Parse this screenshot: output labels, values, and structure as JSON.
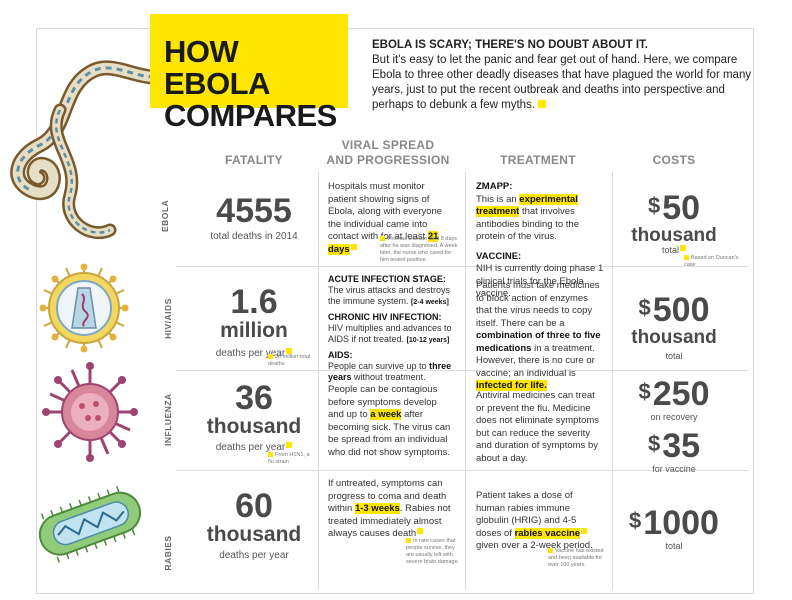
{
  "title_line1": "HOW EBOLA",
  "title_line2": "COMPARES",
  "intro": {
    "lead": "EBOLA IS SCARY; THERE'S NO DOUBT ABOUT IT.",
    "body": "But it's easy to let the panic and fear get out of hand. Here, we compare Ebola to three other deadly diseases that have plagued the world for many years, just to put the recent outbreak and deaths into perspective and perhaps to debunk a few myths."
  },
  "columns": {
    "fatality": "FATALITY",
    "viral_line1": "VIRAL SPREAD",
    "viral_line2": "AND PROGRESSION",
    "treatment": "TREATMENT",
    "costs": "COSTS"
  },
  "colors": {
    "highlight": "#ffe600",
    "number": "#4a4a4a",
    "header": "#888888"
  },
  "rows": {
    "ebola": {
      "label": "EBOLA",
      "fatality_num": "4555",
      "fatality_sub": "total deaths in 2014",
      "viral_text": "Hospitals must monitor patient showing signs of Ebola, along with everyone the individual came into contact with for at least",
      "viral_hl": "21 days",
      "viral_fn": "Thomas Duncan died 8 days after he was diagnosed. A week later, the nurse who cared for him tested positive.",
      "treat_h1": "ZMAPP:",
      "treat_t1a": "This is an",
      "treat_hl1": "experimental treatment",
      "treat_t1b": "that involves antibodies binding to the protein of the virus.",
      "treat_h2": "VACCINE:",
      "treat_t2": "NIH is currently doing phase 1 clinical trials for the Ebola vaccine.",
      "cost_num": "50",
      "cost_unit": "thousand",
      "cost_note": "total",
      "cost_fn": "Based on Duncan's case"
    },
    "hiv": {
      "label": "HIV/AIDS",
      "fatality_num": "1.6",
      "fatality_word": "million",
      "fatality_sub": "deaths per year",
      "fatality_fn": "36 million total deaths",
      "v_h1": "ACUTE INFECTION STAGE:",
      "v_t1": "The virus attacks and destroys the immune system.",
      "v_t1b": "[2-4 weeks]",
      "v_h2": "CHRONIC HIV INFECTION:",
      "v_t2": "HIV multiplies and advances to AIDS if not treated.",
      "v_t2b": "[10-12 years]",
      "v_h3": "AIDS:",
      "v_t3": "People can survive up to",
      "v_t3b": "three years",
      "v_t3c": "without treatment.",
      "treat_t1": "Patients must take medicines to block action of enzymes that the virus needs to copy itself. There can be a",
      "treat_b1": "combination of three to five medications",
      "treat_t2": "in a treatment. However, there is no cure or vaccine; an individual is",
      "treat_hl": "infected for life.",
      "cost_num": "500",
      "cost_unit": "thousand",
      "cost_note": "total"
    },
    "flu": {
      "label": "INFLUENZA",
      "fatality_num": "36",
      "fatality_word": "thousand",
      "fatality_sub": "deaths per year",
      "fatality_fn": "From H1N1, a flu strain",
      "viral_t1": "People can be contagious before symptoms develop and up to",
      "viral_hl": "a week",
      "viral_t2": "after becoming sick. The virus can be spread from an individual who did not show symptoms.",
      "treat": "Antiviral medicines can treat or prevent the flu. Medicine does not eliminate symptoms but can reduce the severity and duration of symptoms by about a day.",
      "cost1_num": "250",
      "cost1_note": "on recovery",
      "cost2_num": "35",
      "cost2_note": "for vaccine"
    },
    "rabies": {
      "label": "RABIES",
      "fatality_num": "60",
      "fatality_word": "thousand",
      "fatality_sub": "deaths per year",
      "viral_t1": "If untreated, symptoms can progress to coma and death within",
      "viral_hl": "1-3 weeks",
      "viral_t2": ". Rabies not treated immediately almost always causes death",
      "viral_fn": "In rare cases that people survive, they are usually left with severe brain damage.",
      "treat_t1": "Patient takes a dose of human rabies immune globulin (HRIG) and 4-5 doses of",
      "treat_hl": "rabies vaccine",
      "treat_t2": "given over a 2-week period.",
      "treat_fn": "Vaccine has existed and been available for over 100 years.",
      "cost_num": "1000",
      "cost_note": "total"
    }
  }
}
